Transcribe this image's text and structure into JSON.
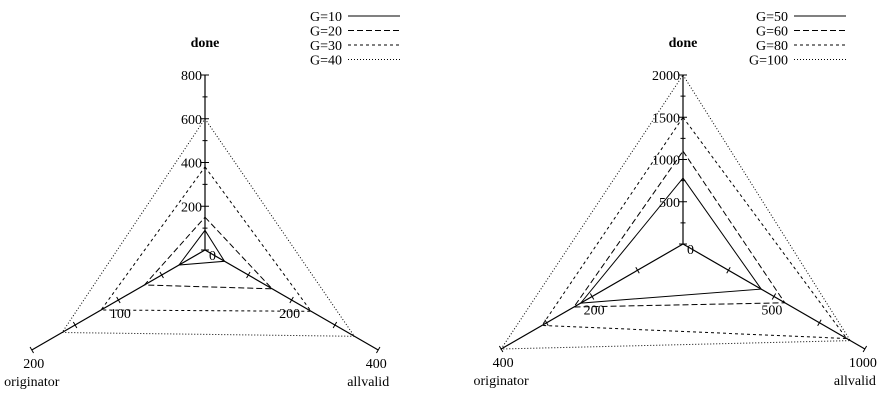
{
  "chart_data": [
    {
      "type": "radar",
      "axes": [
        {
          "label": "done",
          "ticks": [
            "0",
            "200",
            "400",
            "600",
            "800"
          ],
          "max": 800
        },
        {
          "label": "allvalid",
          "ticks": [
            "200",
            "400"
          ],
          "max": 400
        },
        {
          "label": "originator",
          "ticks": [
            "100",
            "200"
          ],
          "max": 200
        }
      ],
      "series": [
        {
          "name": "G=10",
          "dash": "none",
          "values": {
            "done": 90,
            "allvalid": 45,
            "originator": 30
          }
        },
        {
          "name": "G=20",
          "dash": "6,3",
          "values": {
            "done": 150,
            "allvalid": 155,
            "originator": 70
          }
        },
        {
          "name": "G=30",
          "dash": "3,3",
          "values": {
            "done": 380,
            "allvalid": 245,
            "originator": 120
          }
        },
        {
          "name": "G=40",
          "dash": "1,2",
          "values": {
            "done": 600,
            "allvalid": 345,
            "originator": 165
          }
        }
      ],
      "legend": "top-right"
    },
    {
      "type": "radar",
      "axes": [
        {
          "label": "done",
          "ticks": [
            "0",
            "500",
            "1000",
            "1500",
            "2000"
          ],
          "max": 2000
        },
        {
          "label": "allvalid",
          "ticks": [
            "500",
            "1000"
          ],
          "max": 1000
        },
        {
          "label": "originator",
          "ticks": [
            "200",
            "400"
          ],
          "max": 400
        }
      ],
      "series": [
        {
          "name": "G=50",
          "dash": "none",
          "values": {
            "done": 780,
            "allvalid": 430,
            "originator": 225
          }
        },
        {
          "name": "G=60",
          "dash": "6,3",
          "values": {
            "done": 1100,
            "allvalid": 560,
            "originator": 240
          }
        },
        {
          "name": "G=80",
          "dash": "3,3",
          "values": {
            "done": 1500,
            "allvalid": 900,
            "originator": 310
          }
        },
        {
          "name": "G=100",
          "dash": "1,2",
          "values": {
            "done": 2000,
            "allvalid": 920,
            "originator": 400
          }
        }
      ],
      "legend": "top-right"
    }
  ]
}
